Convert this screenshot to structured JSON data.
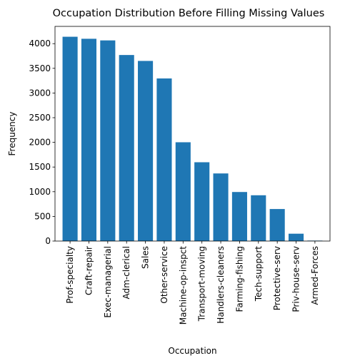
{
  "chart_data": {
    "type": "bar",
    "title": "Occupation Distribution Before Filling Missing Values",
    "xlabel": "Occupation",
    "ylabel": "Frequency",
    "categories": [
      "Prof-specialty",
      "Craft-repair",
      "Exec-managerial",
      "Adm-clerical",
      "Sales",
      "Other-service",
      "Machine-op-inspct",
      "Transport-moving",
      "Handlers-cleaners",
      "Farming-fishing",
      "Tech-support",
      "Protective-serv",
      "Priv-house-serv",
      "Armed-Forces"
    ],
    "values": [
      4140,
      4099,
      4066,
      3770,
      3650,
      3295,
      2002,
      1597,
      1370,
      994,
      928,
      649,
      149,
      9
    ],
    "ylim": [
      0,
      4350
    ],
    "yticks": [
      0,
      500,
      1000,
      1500,
      2000,
      2500,
      3000,
      3500,
      4000
    ],
    "bar_color": "#1f77b4",
    "grid": false,
    "legend": "none"
  }
}
